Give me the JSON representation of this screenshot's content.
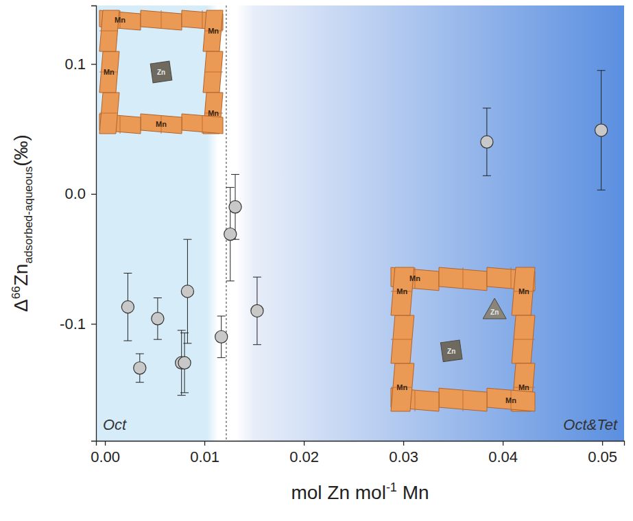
{
  "chart_data": {
    "type": "scatter",
    "x_label": {
      "parts": [
        "mol Zn mol",
        "-1",
        " Mn"
      ]
    },
    "y_label": {
      "parts": [
        "Δ",
        "66",
        "Zn",
        "adsorbed-aqueous",
        "(‰)"
      ]
    },
    "x": [
      0.0023,
      0.0035,
      0.0053,
      0.0077,
      0.008,
      0.0083,
      0.0117,
      0.0126,
      0.0131,
      0.0153,
      0.0384,
      0.0499
    ],
    "y": [
      -0.087,
      -0.134,
      -0.096,
      -0.13,
      -0.13,
      -0.075,
      -0.11,
      -0.031,
      -0.01,
      -0.09,
      0.04,
      0.049
    ],
    "y_error": [
      0.026,
      0.011,
      0.016,
      0.025,
      0.023,
      0.04,
      0.016,
      0.036,
      0.025,
      0.026,
      0.026,
      0.046
    ],
    "color": "#c8c8c8",
    "marker": "circle",
    "xlim": [
      -0.0009,
      0.0522
    ],
    "ylim": [
      -0.19,
      0.145
    ],
    "xticks": [
      {
        "value": 0,
        "label": "0.00"
      },
      {
        "value": 0.01,
        "label": "0.01"
      },
      {
        "value": 0.02,
        "label": "0.02"
      },
      {
        "value": 0.03,
        "label": "0.03"
      },
      {
        "value": 0.04,
        "label": "0.04"
      },
      {
        "value": 0.05,
        "label": "0.05"
      }
    ],
    "yticks": [
      -0.1,
      {
        "value": 0,
        "label": "0.0"
      },
      0.1
    ],
    "grid": false,
    "threshold": 0.0122,
    "annotations": [
      "Oct",
      "Oct&Tet"
    ],
    "insets": [
      {
        "mn_labels": [
          "Mn",
          "Mn",
          "Mn",
          "Mn",
          "Mn"
        ],
        "zn_labels": [
          "Zn"
        ]
      },
      {
        "mn_labels": [
          "Mn",
          "Mn",
          "Mn",
          "Mn",
          "Mn",
          "Mn"
        ],
        "zn_labels": [
          "Zn",
          "Zn"
        ]
      }
    ]
  }
}
